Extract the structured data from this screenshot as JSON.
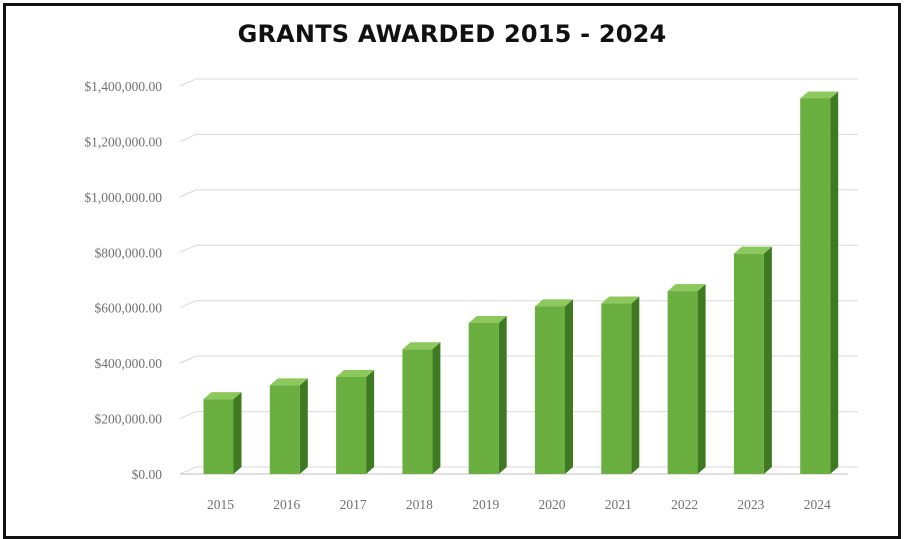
{
  "chart_data": {
    "type": "bar",
    "title": "GRANTS AWARDED 2015 - 2024",
    "xlabel": "",
    "ylabel": "",
    "categories": [
      "2015",
      "2016",
      "2017",
      "2018",
      "2019",
      "2020",
      "2021",
      "2022",
      "2023",
      "2024"
    ],
    "values": [
      270000,
      320000,
      350000,
      450000,
      545000,
      605000,
      615000,
      660000,
      795000,
      1355000
    ],
    "ylim": [
      0,
      1400000
    ],
    "yticks": [
      0,
      200000,
      400000,
      600000,
      800000,
      1000000,
      1200000,
      1400000
    ],
    "ytick_labels": [
      "$0.00",
      "$200,000.00",
      "$400,000.00",
      "$600,000.00",
      "$800,000.00",
      "$1,000,000.00",
      "$1,200,000.00",
      "$1,400,000.00"
    ],
    "grid": true,
    "style": "3d-column",
    "colors": {
      "front": "#6aaf3f",
      "side": "#3f7a22",
      "top": "#8cc85c",
      "grid": "#d9d9d9",
      "floor": "#bfbfbf"
    }
  }
}
